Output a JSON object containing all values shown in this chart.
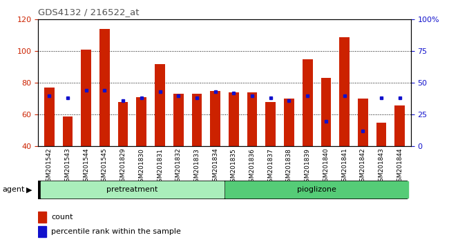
{
  "title": "GDS4132 / 216522_at",
  "samples": [
    "GSM201542",
    "GSM201543",
    "GSM201544",
    "GSM201545",
    "GSM201829",
    "GSM201830",
    "GSM201831",
    "GSM201832",
    "GSM201833",
    "GSM201834",
    "GSM201835",
    "GSM201836",
    "GSM201837",
    "GSM201838",
    "GSM201839",
    "GSM201840",
    "GSM201841",
    "GSM201842",
    "GSM201843",
    "GSM201844"
  ],
  "counts": [
    77,
    59,
    101,
    114,
    68,
    71,
    92,
    73,
    73,
    75,
    74,
    74,
    68,
    70,
    95,
    83,
    109,
    70,
    55,
    66
  ],
  "percentiles": [
    40,
    38,
    44,
    44,
    36,
    38,
    43,
    40,
    38,
    43,
    42,
    40,
    38,
    36,
    40,
    20,
    40,
    12,
    38,
    38
  ],
  "ylim_left": [
    40,
    120
  ],
  "ylim_right": [
    0,
    100
  ],
  "yticks_left": [
    40,
    60,
    80,
    100,
    120
  ],
  "yticks_right": [
    0,
    25,
    50,
    75,
    100
  ],
  "bar_color": "#cc2200",
  "dot_color": "#1111cc",
  "title_color": "#555555",
  "axis_color_left": "#cc2200",
  "axis_color_right": "#1111cc",
  "pretreatment_color": "#aaeebb",
  "pioglizone_color": "#55cc77",
  "xtick_bg": "#c8c8c8"
}
